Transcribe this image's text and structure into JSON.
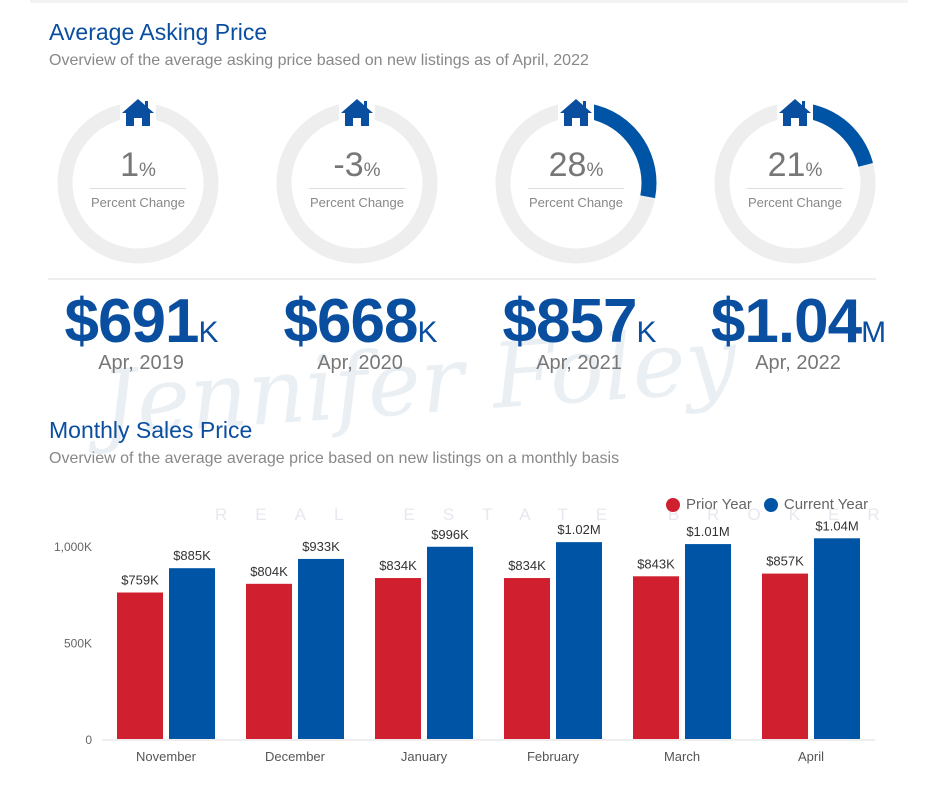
{
  "section1": {
    "title": "Average Asking Price",
    "subtitle": "Overview of the average asking price based on new listings as of April, 2022"
  },
  "donuts": [
    {
      "value": "1",
      "unit": "%",
      "label": "Percent Change",
      "fraction": 0.01,
      "price": "$691",
      "price_unit": "K",
      "date": "Apr, 2019"
    },
    {
      "value": "-3",
      "unit": "%",
      "label": "Percent Change",
      "fraction": 0,
      "price": "$668",
      "price_unit": "K",
      "date": "Apr, 2020"
    },
    {
      "value": "28",
      "unit": "%",
      "label": "Percent Change",
      "fraction": 0.28,
      "price": "$857",
      "price_unit": "K",
      "date": "Apr, 2021"
    },
    {
      "value": "21",
      "unit": "%",
      "label": "Percent Change",
      "fraction": 0.21,
      "price": "$1.04",
      "price_unit": "M",
      "date": "Apr, 2022"
    }
  ],
  "section2": {
    "title": "Monthly Sales Price",
    "subtitle": "Overview of the average average price based on new listings on a monthly basis"
  },
  "watermark": {
    "name": "Jennifer Foley",
    "tagline": "REAL ESTATE BROKER"
  },
  "colors": {
    "accent": "#0a4ea0",
    "prior": "#d01f2e",
    "current": "#0054a6",
    "ring": "#eeeeee"
  },
  "chart_data": {
    "type": "bar",
    "categories": [
      "November",
      "December",
      "January",
      "February",
      "March",
      "April"
    ],
    "series": [
      {
        "name": "Prior Year",
        "values": [
          759,
          804,
          834,
          834,
          843,
          857
        ],
        "labels": [
          "$759K",
          "$804K",
          "$834K",
          "$834K",
          "$843K",
          "$857K"
        ]
      },
      {
        "name": "Current Year",
        "values": [
          885,
          933,
          996,
          1020,
          1010,
          1040
        ],
        "labels": [
          "$885K",
          "$933K",
          "$996K",
          "$1.02M",
          "$1.01M",
          "$1.04M"
        ]
      }
    ],
    "yticks": [
      {
        "v": 0,
        "label": "0"
      },
      {
        "v": 500,
        "label": "500K"
      },
      {
        "v": 1000,
        "label": "1,000K"
      }
    ],
    "ylim": [
      0,
      1100
    ],
    "legend": "top-right",
    "grid": false
  }
}
